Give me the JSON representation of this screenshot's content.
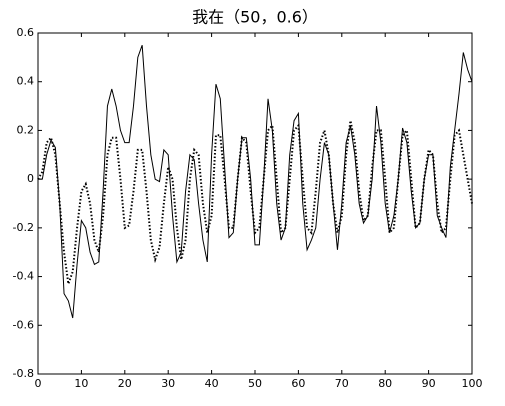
{
  "chart_data": {
    "type": "line",
    "title": "我在（50，0.6）",
    "x": [
      0,
      1,
      2,
      3,
      4,
      5,
      6,
      7,
      8,
      9,
      10,
      11,
      12,
      13,
      14,
      15,
      16,
      17,
      18,
      19,
      20,
      21,
      22,
      23,
      24,
      25,
      26,
      27,
      28,
      29,
      30,
      31,
      32,
      33,
      34,
      35,
      36,
      37,
      38,
      39,
      40,
      41,
      42,
      43,
      44,
      45,
      46,
      47,
      48,
      49,
      50,
      51,
      52,
      53,
      54,
      55,
      56,
      57,
      58,
      59,
      60,
      61,
      62,
      63,
      64,
      65,
      66,
      67,
      68,
      69,
      70,
      71,
      72,
      73,
      74,
      75,
      76,
      77,
      78,
      79,
      80,
      81,
      82,
      83,
      84,
      85,
      86,
      87,
      88,
      89,
      90,
      91,
      92,
      93,
      94,
      95,
      96,
      97,
      98,
      99,
      100
    ],
    "series": [
      {
        "color": "#000000",
        "dash": "solid",
        "values": [
          0,
          0,
          0.1,
          0.16,
          0.13,
          -0.1,
          -0.47,
          -0.5,
          -0.57,
          -0.35,
          -0.17,
          -0.2,
          -0.3,
          -0.35,
          -0.34,
          -0.05,
          0.3,
          0.37,
          0.3,
          0.2,
          0.15,
          0.15,
          0.3,
          0.5,
          0.55,
          0.3,
          0.1,
          0,
          -0.01,
          0.12,
          0.1,
          -0.15,
          -0.34,
          -0.3,
          -0.05,
          0.1,
          0.08,
          -0.1,
          -0.25,
          -0.34,
          0.1,
          0.39,
          0.33,
          0.05,
          -0.24,
          -0.22,
          0,
          0.17,
          0.17,
          0,
          -0.27,
          -0.27,
          0,
          0.33,
          0.2,
          -0.1,
          -0.25,
          -0.2,
          0.1,
          0.24,
          0.27,
          -0.1,
          -0.29,
          -0.25,
          -0.2,
          0,
          0.15,
          0.1,
          -0.1,
          -0.29,
          -0.1,
          0.15,
          0.22,
          0.1,
          -0.1,
          -0.18,
          -0.15,
          0,
          0.3,
          0.15,
          -0.1,
          -0.22,
          -0.15,
          0,
          0.21,
          0.15,
          -0.05,
          -0.2,
          -0.18,
          0,
          0.1,
          0.1,
          -0.15,
          -0.2,
          -0.24,
          0.05,
          0.2,
          0.35,
          0.52,
          0.45,
          0.4
        ]
      },
      {
        "color": "#000000",
        "dash": "dotted",
        "values": [
          0,
          0.03,
          0.15,
          0.17,
          0.1,
          -0.1,
          -0.3,
          -0.43,
          -0.38,
          -0.2,
          -0.05,
          -0.02,
          -0.1,
          -0.25,
          -0.3,
          -0.15,
          0.1,
          0.17,
          0.17,
          0,
          -0.2,
          -0.19,
          -0.05,
          0.12,
          0.12,
          -0.05,
          -0.25,
          -0.33,
          -0.28,
          -0.1,
          0.05,
          0,
          -0.2,
          -0.33,
          -0.25,
          0,
          0.12,
          0.1,
          -0.1,
          -0.22,
          -0.15,
          0.18,
          0.18,
          0,
          -0.2,
          -0.2,
          0,
          0.17,
          0.15,
          -0.05,
          -0.22,
          -0.2,
          0,
          0.2,
          0.22,
          0,
          -0.22,
          -0.2,
          0,
          0.2,
          0.22,
          0,
          -0.2,
          -0.22,
          -0.05,
          0.15,
          0.2,
          0.1,
          -0.1,
          -0.22,
          -0.15,
          0.1,
          0.24,
          0.15,
          -0.05,
          -0.17,
          -0.15,
          0.05,
          0.2,
          0.2,
          0,
          -0.22,
          -0.2,
          0,
          0.18,
          0.2,
          0,
          -0.2,
          -0.18,
          0,
          0.12,
          0.1,
          -0.1,
          -0.22,
          -0.2,
          0,
          0.18,
          0.2,
          0.1,
          0,
          -0.1
        ]
      }
    ],
    "xlim": [
      0,
      100
    ],
    "xticks": [
      0,
      10,
      20,
      30,
      40,
      50,
      60,
      70,
      80,
      90,
      100
    ],
    "ylim": [
      -0.8,
      0.6
    ],
    "yticks": [
      -0.8,
      -0.6,
      -0.4,
      -0.2,
      0,
      0.2,
      0.4,
      0.6
    ]
  }
}
